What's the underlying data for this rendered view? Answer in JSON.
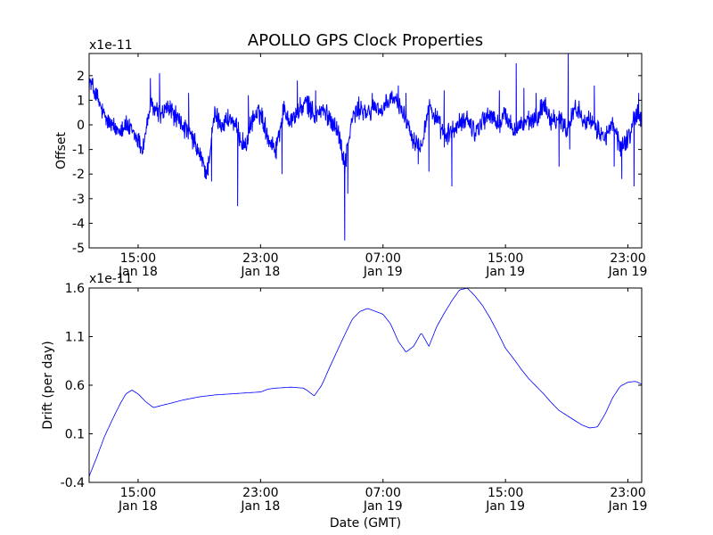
{
  "title": "APOLLO GPS Clock Properties",
  "xlabel": "Date (GMT)",
  "x_ticks": [
    {
      "hour": 15,
      "time": "15:00",
      "date": "Jan 18"
    },
    {
      "hour": 23,
      "time": "23:00",
      "date": "Jan 18"
    },
    {
      "hour": 31,
      "time": "07:00",
      "date": "Jan 19"
    },
    {
      "hour": 39,
      "time": "15:00",
      "date": "Jan 19"
    },
    {
      "hour": 47,
      "time": "23:00",
      "date": "Jan 19"
    }
  ],
  "line_color": "#0000ff",
  "chart_data": [
    {
      "type": "line",
      "name": "offset",
      "ylabel": "Offset",
      "multiplier_label": "x1e-11",
      "xlim_hours": [
        11.8,
        47.9
      ],
      "ylim": [
        -5,
        2.9
      ],
      "yticks": [
        2,
        1,
        0,
        -1,
        -2,
        -3,
        -4,
        -5
      ],
      "ytick_labels": [
        "2",
        "1",
        "0",
        "-1",
        "-2",
        "-3",
        "-4",
        "-5"
      ],
      "x_hours": [
        11.8,
        12.2,
        12.8,
        13.5,
        14.2,
        15.0,
        15.3,
        15.8,
        16.5,
        17.0,
        17.5,
        18.0,
        18.5,
        19.0,
        19.5,
        20.0,
        20.5,
        21.0,
        22.0,
        22.5,
        23.0,
        23.5,
        24.0,
        24.5,
        25.0,
        26.0,
        26.5,
        27.0,
        27.5,
        28.0,
        28.5,
        29.0,
        29.5,
        30.0,
        30.5,
        31.0,
        31.5,
        32.0,
        32.5,
        33.0,
        33.5,
        34.0,
        34.5,
        35.0,
        36.0,
        36.5,
        37.0,
        37.5,
        38.0,
        38.5,
        39.0,
        39.5,
        40.0,
        40.5,
        41.0,
        41.5,
        42.0,
        42.5,
        43.0,
        43.5,
        44.0,
        44.5,
        45.0,
        45.5,
        46.0,
        46.5,
        47.0,
        47.5,
        47.9
      ],
      "values": [
        1.8,
        1.3,
        0.3,
        -0.2,
        0.0,
        -0.6,
        -1.0,
        0.8,
        0.4,
        0.7,
        0.3,
        -0.1,
        -0.5,
        -1.2,
        -2.0,
        0.4,
        0.0,
        0.3,
        -0.9,
        0.3,
        0.5,
        -0.5,
        -1.0,
        0.6,
        0.2,
        0.9,
        0.4,
        0.6,
        0.3,
        -0.1,
        -1.6,
        0.3,
        0.7,
        0.4,
        0.8,
        0.5,
        1.1,
        0.9,
        0.3,
        -0.6,
        -0.8,
        0.8,
        0.2,
        -0.5,
        0.0,
        0.3,
        -0.3,
        0.2,
        0.4,
        0.0,
        0.4,
        -0.2,
        0.0,
        0.1,
        0.2,
        0.9,
        0.2,
        0.3,
        -0.2,
        0.7,
        0.4,
        0.1,
        -0.2,
        -0.5,
        0.0,
        -0.9,
        -0.6,
        0.4,
        0.3
      ],
      "noise_amplitude": 0.35,
      "spikes": [
        {
          "hour": 12.0,
          "value": 1.9
        },
        {
          "hour": 15.8,
          "value": 1.9
        },
        {
          "hour": 16.4,
          "value": 2.1
        },
        {
          "hour": 18.3,
          "value": 1.3
        },
        {
          "hour": 19.8,
          "value": -2.3
        },
        {
          "hour": 21.5,
          "value": -3.3
        },
        {
          "hour": 22.2,
          "value": 1.2
        },
        {
          "hour": 24.4,
          "value": -2.0
        },
        {
          "hour": 25.4,
          "value": 1.8
        },
        {
          "hour": 26.6,
          "value": 1.4
        },
        {
          "hour": 28.5,
          "value": -4.7
        },
        {
          "hour": 28.7,
          "value": -2.8
        },
        {
          "hour": 30.3,
          "value": 1.3
        },
        {
          "hour": 32.0,
          "value": 1.6
        },
        {
          "hour": 32.5,
          "value": 1.3
        },
        {
          "hour": 33.3,
          "value": -1.6
        },
        {
          "hour": 34.0,
          "value": -1.9
        },
        {
          "hour": 35.0,
          "value": 1.4
        },
        {
          "hour": 35.5,
          "value": -2.5
        },
        {
          "hour": 38.6,
          "value": 1.4
        },
        {
          "hour": 39.7,
          "value": 2.5
        },
        {
          "hour": 40.2,
          "value": 1.5
        },
        {
          "hour": 41.0,
          "value": 1.3
        },
        {
          "hour": 42.5,
          "value": -1.7
        },
        {
          "hour": 43.1,
          "value": 2.9
        },
        {
          "hour": 43.2,
          "value": -1.0
        },
        {
          "hour": 44.8,
          "value": 1.6
        },
        {
          "hour": 46.1,
          "value": -1.7
        },
        {
          "hour": 46.6,
          "value": -2.2
        },
        {
          "hour": 47.4,
          "value": -2.5
        },
        {
          "hour": 47.7,
          "value": 1.3
        }
      ]
    },
    {
      "type": "line",
      "name": "drift",
      "ylabel": "Drift (per day)",
      "multiplier_label": "x1e-11",
      "xlim_hours": [
        11.8,
        47.9
      ],
      "ylim": [
        -0.4,
        1.6
      ],
      "yticks": [
        1.6,
        1.1,
        0.6,
        0.1,
        -0.4
      ],
      "ytick_labels": [
        "1.6",
        "1.1",
        "0.6",
        "0.1",
        "-0.4"
      ],
      "x_hours": [
        11.8,
        12.3,
        12.8,
        13.3,
        13.8,
        14.2,
        14.6,
        15.0,
        15.5,
        16.0,
        17.0,
        18.0,
        19.0,
        20.0,
        21.0,
        22.0,
        23.0,
        23.5,
        24.0,
        25.0,
        25.8,
        26.1,
        26.5,
        27.0,
        27.5,
        28.0,
        28.5,
        29.0,
        29.5,
        30.0,
        30.5,
        31.0,
        31.5,
        32.0,
        32.5,
        33.0,
        33.5,
        34.0,
        34.5,
        35.0,
        35.5,
        36.0,
        36.5,
        37.0,
        37.5,
        38.0,
        38.5,
        39.0,
        39.5,
        40.0,
        40.5,
        41.0,
        41.5,
        42.0,
        42.5,
        43.0,
        43.5,
        44.0,
        44.5,
        45.0,
        45.5,
        46.0,
        46.5,
        47.0,
        47.5,
        47.9
      ],
      "values": [
        -0.34,
        -0.14,
        0.07,
        0.24,
        0.4,
        0.51,
        0.55,
        0.51,
        0.43,
        0.37,
        0.41,
        0.45,
        0.48,
        0.5,
        0.51,
        0.52,
        0.53,
        0.56,
        0.57,
        0.58,
        0.57,
        0.54,
        0.49,
        0.6,
        0.78,
        0.95,
        1.12,
        1.28,
        1.36,
        1.39,
        1.36,
        1.33,
        1.23,
        1.05,
        0.94,
        1.0,
        1.14,
        1.0,
        1.2,
        1.34,
        1.47,
        1.58,
        1.6,
        1.52,
        1.42,
        1.29,
        1.14,
        0.98,
        0.88,
        0.77,
        0.67,
        0.59,
        0.51,
        0.42,
        0.34,
        0.29,
        0.24,
        0.19,
        0.16,
        0.17,
        0.3,
        0.47,
        0.59,
        0.63,
        0.64,
        0.61
      ]
    }
  ]
}
